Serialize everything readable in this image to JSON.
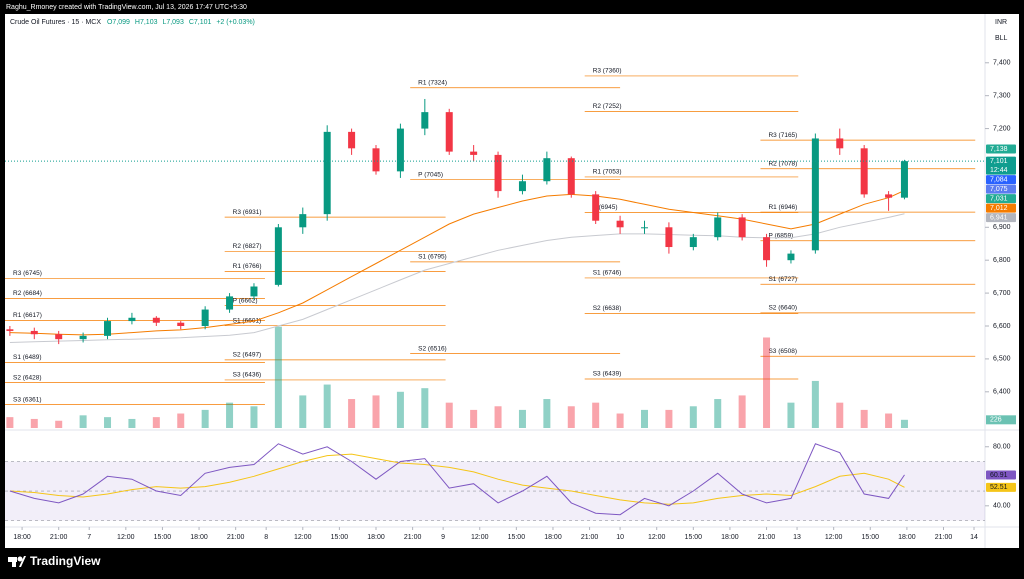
{
  "header": {
    "caption": "Raghu_Rmoney created with TradingView.com, Jul 13, 2026 17:47 UTC+5:30"
  },
  "footer": {
    "brand": "TradingView"
  },
  "chart_data": {
    "type": "candlestick",
    "title": "Crude Oil Futures · 15 · MCX",
    "legend": {
      "open": "O7,099",
      "high": "H7,103",
      "low": "L7,093",
      "close": "C7,101",
      "change": "+2 (+0.03%)"
    },
    "currency": "INR",
    "mode": "BLL",
    "colors": {
      "up": "#089981",
      "down": "#f23645"
    },
    "x": [
      -1,
      1,
      3,
      5,
      7,
      9,
      11,
      13,
      15,
      17,
      19,
      21,
      23,
      25,
      27,
      29,
      31,
      33,
      35,
      37,
      39,
      41,
      43,
      45,
      47,
      49,
      51,
      53,
      55,
      57,
      59,
      61,
      63,
      65,
      67,
      69,
      71,
      72.3
    ],
    "open": [
      6590,
      6585,
      6575,
      6560,
      6570,
      6615,
      6625,
      6610,
      6600,
      6650,
      6690,
      6725,
      6900,
      6940,
      7190,
      7140,
      7070,
      7200,
      7250,
      7130,
      7120,
      7010,
      7040,
      7110,
      7000,
      6920,
      6900,
      6900,
      6840,
      6870,
      6930,
      6870,
      6800,
      6830,
      7170,
      7140,
      7000,
      6990
    ],
    "high": [
      6600,
      6595,
      6585,
      6580,
      6625,
      6640,
      6630,
      6615,
      6660,
      6700,
      6730,
      6910,
      6960,
      7210,
      7200,
      7150,
      7215,
      7290,
      7260,
      7150,
      7130,
      7060,
      7130,
      7115,
      7010,
      6935,
      6920,
      6915,
      6880,
      6945,
      6940,
      6880,
      6830,
      7185,
      7200,
      7150,
      7010,
      7105
    ],
    "low": [
      6570,
      6560,
      6545,
      6550,
      6560,
      6605,
      6600,
      6590,
      6590,
      6640,
      6680,
      6720,
      6880,
      6920,
      7120,
      7060,
      7050,
      7180,
      7120,
      7100,
      6990,
      7000,
      7030,
      6990,
      6910,
      6880,
      6880,
      6820,
      6830,
      6860,
      6860,
      6780,
      6790,
      6820,
      7120,
      6990,
      6950,
      6985
    ],
    "close": [
      6585,
      6575,
      6560,
      6570,
      6615,
      6625,
      6610,
      6600,
      6650,
      6690,
      6720,
      6900,
      6940,
      7190,
      7140,
      7070,
      7200,
      7250,
      7130,
      7120,
      7010,
      7040,
      7110,
      7000,
      6920,
      6900,
      6900,
      6840,
      6870,
      6930,
      6870,
      6800,
      6820,
      7170,
      7140,
      7000,
      6990,
      7101
    ],
    "moving_averages": [
      {
        "color": "#f57c00",
        "values": [
          6580,
          6578,
          6575,
          6573,
          6575,
          6580,
          6585,
          6588,
          6595,
          6605,
          6615,
          6640,
          6670,
          6710,
          6750,
          6790,
          6830,
          6870,
          6910,
          6940,
          6960,
          6980,
          6995,
          7000,
          6995,
          6985,
          6970,
          6955,
          6945,
          6935,
          6925,
          6910,
          6895,
          6910,
          6940,
          6970,
          6990,
          7012
        ]
      },
      {
        "color": "#c8cad0",
        "values": [
          6550,
          6552,
          6554,
          6556,
          6558,
          6560,
          6562,
          6564,
          6568,
          6572,
          6580,
          6600,
          6620,
          6650,
          6680,
          6710,
          6740,
          6770,
          6790,
          6810,
          6830,
          6845,
          6860,
          6870,
          6875,
          6880,
          6880,
          6878,
          6876,
          6874,
          6870,
          6868,
          6868,
          6880,
          6900,
          6915,
          6930,
          6941
        ]
      }
    ],
    "volume": {
      "values": [
        300,
        250,
        200,
        350,
        300,
        250,
        300,
        400,
        500,
        700,
        600,
        2800,
        900,
        1200,
        800,
        900,
        1000,
        1100,
        700,
        500,
        600,
        500,
        800,
        600,
        700,
        400,
        500,
        500,
        600,
        800,
        900,
        2500,
        700,
        1300,
        700,
        500,
        400,
        226
      ],
      "vlim": [
        0,
        2900
      ],
      "tag": {
        "value": 226,
        "label": "226"
      }
    },
    "xlim": [
      -1.4,
      78.9
    ],
    "xticks": [
      {
        "value": 0,
        "label": "18:00"
      },
      {
        "value": 3,
        "label": "21:00"
      },
      {
        "value": 5.5,
        "label": "7"
      },
      {
        "value": 8.5,
        "label": "12:00"
      },
      {
        "value": 11.5,
        "label": "15:00"
      },
      {
        "value": 14.5,
        "label": "18:00"
      },
      {
        "value": 17.5,
        "label": "21:00"
      },
      {
        "value": 20,
        "label": "8"
      },
      {
        "value": 23,
        "label": "12:00"
      },
      {
        "value": 26,
        "label": "15:00"
      },
      {
        "value": 29,
        "label": "18:00"
      },
      {
        "value": 32,
        "label": "21:00"
      },
      {
        "value": 34.5,
        "label": "9"
      },
      {
        "value": 37.5,
        "label": "12:00"
      },
      {
        "value": 40.5,
        "label": "15:00"
      },
      {
        "value": 43.5,
        "label": "18:00"
      },
      {
        "value": 46.5,
        "label": "21:00"
      },
      {
        "value": 49,
        "label": "10"
      },
      {
        "value": 52,
        "label": "12:00"
      },
      {
        "value": 55,
        "label": "15:00"
      },
      {
        "value": 58,
        "label": "18:00"
      },
      {
        "value": 61,
        "label": "21:00"
      },
      {
        "value": 63.5,
        "label": "13"
      },
      {
        "value": 66.5,
        "label": "12:00"
      },
      {
        "value": 69.5,
        "label": "15:00"
      },
      {
        "value": 72.5,
        "label": "18:00"
      },
      {
        "value": 75.5,
        "label": "21:00"
      },
      {
        "value": 78,
        "label": "14"
      }
    ],
    "ylim": [
      6290,
      7530
    ],
    "yticks": [
      {
        "value": 6400,
        "label": "6,400"
      },
      {
        "value": 6500,
        "label": "6,500"
      },
      {
        "value": 6600,
        "label": "6,600"
      },
      {
        "value": 6700,
        "label": "6,700"
      },
      {
        "value": 6800,
        "label": "6,800"
      },
      {
        "value": 6900,
        "label": "6,900"
      },
      {
        "value": 7200,
        "label": "7,200"
      },
      {
        "value": 7300,
        "label": "7,300"
      },
      {
        "value": 7400,
        "label": "7,400"
      }
    ],
    "last_price": {
      "value": 7101,
      "label": "7,101",
      "countdown": "12:44",
      "color": "#0f9d8f"
    },
    "price_tags": [
      {
        "value": 7138,
        "label": "7,138",
        "color": "#22ab94"
      },
      {
        "value": 7084,
        "label": "7,084",
        "color": "#2962ff"
      },
      {
        "value": 7075,
        "label": "7,075",
        "color": "#5b7cf0"
      },
      {
        "value": 7031,
        "label": "7,031",
        "color": "#22ab94"
      },
      {
        "value": 7012,
        "label": "7,012",
        "color": "#f57c00"
      },
      {
        "value": 6941,
        "label": "6,941",
        "color": "#b2b5be"
      }
    ],
    "pivots": [
      {
        "x": [
          -1.4,
          19.9
        ],
        "levels": [
          {
            "label": "R3 (6745)",
            "value": 6745
          },
          {
            "label": "R2 (6684)",
            "value": 6684
          },
          {
            "label": "R1 (6617)",
            "value": 6617
          },
          {
            "label": "S1 (6489)",
            "value": 6489
          },
          {
            "label": "S2 (6428)",
            "value": 6428
          },
          {
            "label": "S3 (6361)",
            "value": 6361
          }
        ]
      },
      {
        "x": [
          16.6,
          34.7
        ],
        "levels": [
          {
            "label": "R3 (6931)",
            "value": 6931
          },
          {
            "label": "R2 (6827)",
            "value": 6827
          },
          {
            "label": "R1 (6766)",
            "value": 6766
          },
          {
            "label": "P (6662)",
            "value": 6662
          },
          {
            "label": "S1 (6601)",
            "value": 6601
          },
          {
            "label": "S2 (6497)",
            "value": 6497
          },
          {
            "label": "S3 (6436)",
            "value": 6436
          }
        ]
      },
      {
        "x": [
          31.8,
          49
        ],
        "levels": [
          {
            "label": "R1 (7324)",
            "value": 7324
          },
          {
            "label": "P (7045)",
            "value": 7045
          },
          {
            "label": "S1 (6795)",
            "value": 6795
          },
          {
            "label": "S2 (6516)",
            "value": 6516
          }
        ]
      },
      {
        "x": [
          46.1,
          63.6
        ],
        "levels": [
          {
            "label": "R3 (7360)",
            "value": 7360
          },
          {
            "label": "R2 (7252)",
            "value": 7252
          },
          {
            "label": "R1 (7053)",
            "value": 7053
          },
          {
            "label": "P (6945)",
            "value": 6945
          },
          {
            "label": "S1 (6746)",
            "value": 6746
          },
          {
            "label": "S2 (6638)",
            "value": 6638
          },
          {
            "label": "S3 (6439)",
            "value": 6439
          }
        ]
      },
      {
        "x": [
          60.5,
          78.1
        ],
        "levels": [
          {
            "label": "R3 (7165)",
            "value": 7165
          },
          {
            "label": "R2 (7078)",
            "value": 7078
          },
          {
            "label": "R1 (6946)",
            "value": 6946
          },
          {
            "label": "P (6859)",
            "value": 6859
          },
          {
            "label": "S1 (6727)",
            "value": 6727
          },
          {
            "label": "S2 (6640)",
            "value": 6640
          },
          {
            "label": "S3 (6508)",
            "value": 6508
          }
        ]
      }
    ],
    "rsi": {
      "values": [
        50,
        45,
        42,
        48,
        60,
        58,
        50,
        47,
        62,
        66,
        68,
        82,
        75,
        80,
        70,
        58,
        70,
        72,
        52,
        55,
        42,
        50,
        60,
        42,
        35,
        34,
        45,
        40,
        50,
        62,
        48,
        42,
        45,
        82,
        76,
        48,
        45,
        60.91
      ],
      "ma": [
        50,
        49,
        47,
        46,
        48,
        51,
        53,
        52,
        53,
        56,
        60,
        65,
        70,
        74,
        75,
        72,
        69,
        68,
        66,
        63,
        58,
        54,
        52,
        50,
        47,
        44,
        42,
        41,
        42,
        45,
        47,
        48,
        47,
        53,
        60,
        62,
        58,
        52.51
      ],
      "color": "#7e57c2",
      "ma_color": "#f5c518",
      "ylim": [
        27,
        90
      ],
      "yticks": [
        {
          "value": 80,
          "label": "80.00"
        },
        {
          "value": 40,
          "label": "40.00"
        }
      ],
      "levels": [
        70,
        50,
        30
      ],
      "tags": [
        {
          "value": 60.91,
          "label": "60.91",
          "color": "#7e57c2"
        },
        {
          "value": 52.51,
          "label": "52.51",
          "color": "#f5c518"
        }
      ]
    }
  }
}
